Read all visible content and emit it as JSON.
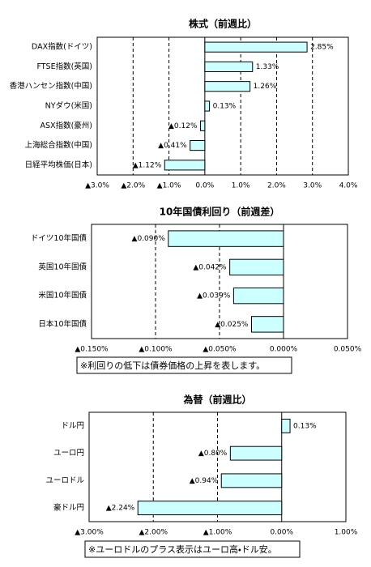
{
  "chart_data": [
    {
      "type": "bar",
      "title": "株式（前週比）",
      "categories": [
        "DAX指数(ドイツ)",
        "FTSE指数(英国)",
        "香港ハンセン指数(中国)",
        "NYダウ(米国)",
        "ASX指数(豪州)",
        "上海総合指数(中国)",
        "日経平均株価(日本)"
      ],
      "values": [
        2.85,
        1.33,
        1.26,
        0.13,
        -0.12,
        -0.41,
        -1.12
      ],
      "value_labels": [
        "2.85%",
        "1.33%",
        "1.26%",
        "0.13%",
        "▲0.12%",
        "▲0.41%",
        "▲1.12%"
      ],
      "color": "#ccffff",
      "negative_color": "#ff0000",
      "grid": true,
      "xlim": [
        -3,
        4
      ],
      "xticks": [
        {
          "value": -3,
          "label": "▲3.0%"
        },
        {
          "value": -2,
          "label": "▲2.0%"
        },
        {
          "value": -1,
          "label": "▲1.0%"
        },
        {
          "value": 0,
          "label": "0.0%"
        },
        {
          "value": 1,
          "label": "1.0%"
        },
        {
          "value": 2,
          "label": "2.0%"
        },
        {
          "value": 3,
          "label": "3.0%"
        },
        {
          "value": 4,
          "label": "4.0%"
        }
      ]
    },
    {
      "type": "bar",
      "title": "10年国債利回り（前週差）",
      "categories": [
        "ドイツ10年国債",
        "英国10年国債",
        "米国10年国債",
        "日本10年国債"
      ],
      "values": [
        -0.09,
        -0.042,
        -0.039,
        -0.025
      ],
      "value_labels": [
        "▲0.090%",
        "▲0.042%",
        "▲0.039%",
        "▲0.025%"
      ],
      "color": "#ccffff",
      "negative_color": "#ff0000",
      "grid": true,
      "xlim": [
        -0.15,
        0.05
      ],
      "xticks": [
        {
          "value": -0.15,
          "label": "▲0.150%"
        },
        {
          "value": -0.1,
          "label": "▲0.100%"
        },
        {
          "value": -0.05,
          "label": "▲0.050%"
        },
        {
          "value": 0,
          "label": "0.000%"
        },
        {
          "value": 0.05,
          "label": "0.050%"
        }
      ],
      "note": "※利回りの低下は債券価格の上昇を表します。"
    },
    {
      "type": "bar",
      "title": "為替（前週比）",
      "categories": [
        "ドル円",
        "ユーロ円",
        "ユーロドル",
        "豪ドル円"
      ],
      "values": [
        0.13,
        -0.8,
        -0.94,
        -2.24
      ],
      "value_labels": [
        "0.13%",
        "▲0.80%",
        "▲0.94%",
        "▲2.24%"
      ],
      "color": "#ccffff",
      "negative_color": "#ff0000",
      "grid": true,
      "xlim": [
        -3,
        1
      ],
      "xticks": [
        {
          "value": -3,
          "label": "▲3.00%"
        },
        {
          "value": -2,
          "label": "▲2.00%"
        },
        {
          "value": -1,
          "label": "▲1.00%"
        },
        {
          "value": 0,
          "label": "0.00%"
        },
        {
          "value": 1,
          "label": "1.00%"
        }
      ],
      "note": "※ユーロドルのプラス表示はユーロ高・ドル安。"
    }
  ]
}
